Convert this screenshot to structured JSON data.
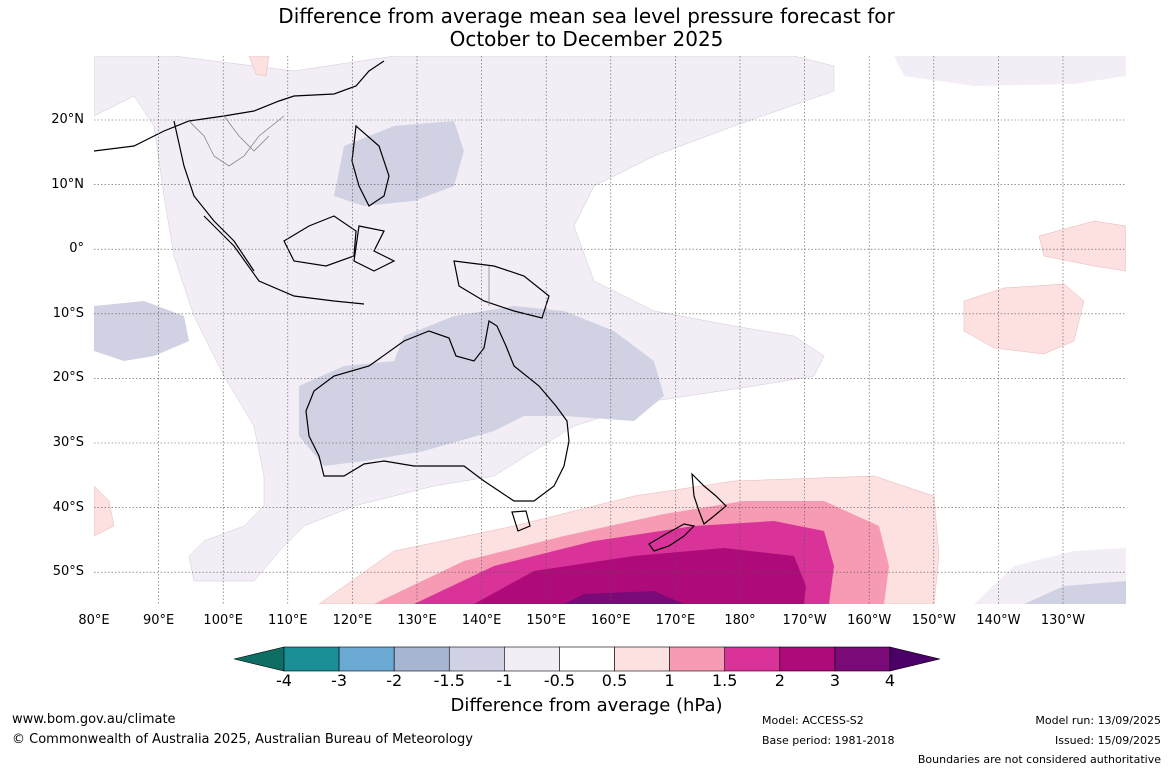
{
  "title": {
    "line1": "Difference from average mean sea level pressure forecast for",
    "line2": "October to December 2025"
  },
  "map": {
    "lon_ticks": [
      "80°E",
      "90°E",
      "100°E",
      "110°E",
      "120°E",
      "130°E",
      "140°E",
      "150°E",
      "160°E",
      "170°E",
      "180°",
      "170°W",
      "160°W",
      "150°W",
      "140°W",
      "130°W"
    ],
    "lat_ticks": [
      "20°N",
      "10°N",
      "0°",
      "10°S",
      "20°S",
      "30°S",
      "40°S",
      "50°S"
    ],
    "regions": [
      {
        "name": "weak-negative-band",
        "category": "-1 to -0.5",
        "color": "#f3eef6"
      },
      {
        "name": "moderate-negative-australia",
        "category": "-1.5 to -1",
        "color": "#d0d2e4"
      },
      {
        "name": "weak-positive-pacific",
        "category": "0.5 to 1",
        "color": "#fde0e0"
      },
      {
        "name": "strong-positive-south-nz",
        "category": "3 to 4",
        "color": "#6e0670"
      }
    ]
  },
  "colorbar": {
    "ticks": [
      "-4",
      "-3",
      "-2",
      "-1.5",
      "-1",
      "-0.5",
      "0.5",
      "1",
      "1.5",
      "2",
      "3",
      "4"
    ],
    "colors": [
      "#0f6e63",
      "#1a8f95",
      "#6aaad2",
      "#a5b5d2",
      "#d0d2e4",
      "#f3eef6",
      "#ffffff",
      "#fde0e0",
      "#f79ab4",
      "#d93399",
      "#ae0a7a",
      "#7a0a78",
      "#4a0066"
    ],
    "label": "Difference from average (hPa)"
  },
  "footer": {
    "website": "www.bom.gov.au/climate",
    "copyright": "© Commonwealth of Australia 2025, Australian Bureau of Meteorology",
    "model": "Model: ACCESS-S2",
    "base_period": "Base period: 1981-2018",
    "model_run": "Model run: 13/09/2025",
    "issued": "Issued: 15/09/2025",
    "disclaimer": "Boundaries are not considered authoritative"
  }
}
